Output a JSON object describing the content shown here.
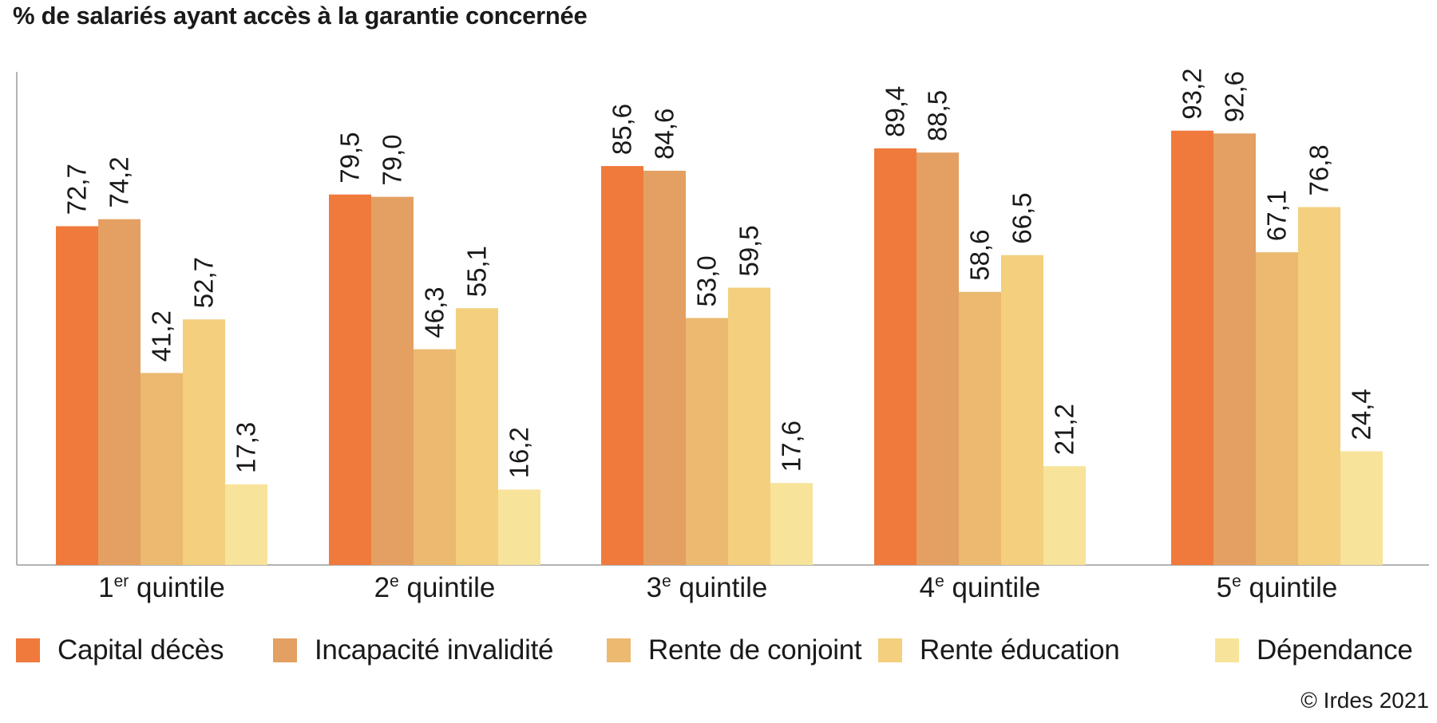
{
  "chart_data": {
    "type": "bar",
    "title": "% de salariés ayant accès à la garantie concernée",
    "xlabel": "",
    "ylabel": "",
    "ylim": [
      0,
      100
    ],
    "grid": false,
    "legend_position": "bottom",
    "categories": [
      {
        "num": "1",
        "sup": "er",
        "rest": " quintile"
      },
      {
        "num": "2",
        "sup": "e",
        "rest": " quintile"
      },
      {
        "num": "3",
        "sup": "e",
        "rest": " quintile"
      },
      {
        "num": "4",
        "sup": "e",
        "rest": " quintile"
      },
      {
        "num": "5",
        "sup": "e",
        "rest": " quintile"
      }
    ],
    "series": [
      {
        "name": "Capital décès",
        "color": "#ef7a3c",
        "values": [
          72.7,
          79.5,
          85.6,
          89.4,
          93.2
        ],
        "labels": [
          "72,7",
          "79,5",
          "85,6",
          "89,4",
          "93,2"
        ]
      },
      {
        "name": "Incapacité invalidité",
        "color": "#e3a062",
        "values": [
          74.2,
          79.0,
          84.6,
          88.5,
          92.6
        ],
        "labels": [
          "74,2",
          "79,0",
          "84,6",
          "88,5",
          "92,6"
        ]
      },
      {
        "name": "Rente de conjoint",
        "color": "#ebb970",
        "values": [
          41.2,
          46.3,
          53.0,
          58.6,
          67.1
        ],
        "labels": [
          "41,2",
          "46,3",
          "53,0",
          "58,6",
          "67,1"
        ]
      },
      {
        "name": "Rente éducation",
        "color": "#f3cf7e",
        "values": [
          52.7,
          55.1,
          59.5,
          66.5,
          76.8
        ],
        "labels": [
          "52,7",
          "55,1",
          "59,5",
          "66,5",
          "76,8"
        ]
      },
      {
        "name": "Dépendance",
        "color": "#f7e39a",
        "values": [
          17.3,
          16.2,
          17.6,
          21.2,
          24.4
        ],
        "labels": [
          "17,3",
          "16,2",
          "17,6",
          "21,2",
          "24,4"
        ]
      }
    ]
  },
  "copyright": "© Irdes 2021"
}
